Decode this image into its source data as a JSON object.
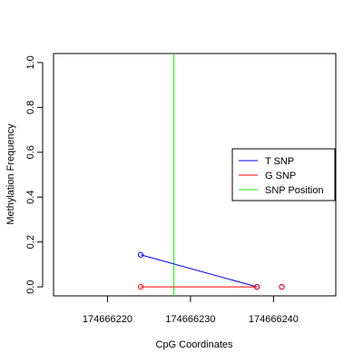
{
  "chart_data": {
    "type": "line",
    "xlabel": "CpG Coordinates",
    "ylabel": "Methylation Frequency",
    "xlim": [
      174666213.5,
      174666247.5
    ],
    "ylim": [
      -0.04,
      1.04
    ],
    "x_ticks": [
      174666220,
      174666230,
      174666240
    ],
    "x_tick_labels": [
      "174666220",
      "174666230",
      "174666240"
    ],
    "y_ticks": [
      0,
      0.2,
      0.4,
      0.6,
      0.8,
      1
    ],
    "y_tick_labels": [
      "0.0",
      "0.2",
      "0.4",
      "0.6",
      "0.8",
      "1.0"
    ],
    "grid": false,
    "legend_position": "right",
    "series": [
      {
        "name": "T SNP",
        "color": "#0000ff",
        "x": [
          174666224,
          174666238
        ],
        "y": [
          0.143,
          0.0
        ]
      },
      {
        "name": "G SNP",
        "color": "#ff0000",
        "x": [
          174666224,
          174666238
        ],
        "y": [
          0.0,
          0.0
        ]
      },
      {
        "name": "T SNP",
        "color": "#0000ff",
        "x": [
          174666241
        ],
        "y": [
          0.0
        ]
      },
      {
        "name": "G SNP",
        "color": "#ff0000",
        "x": [
          174666241
        ],
        "y": [
          0.0
        ]
      }
    ],
    "legend": [
      {
        "label": "T SNP",
        "color": "#0000ff"
      },
      {
        "label": "G SNP",
        "color": "#ff0000"
      },
      {
        "label": "SNP Position",
        "color": "#00ff00"
      }
    ],
    "snp_position": 174666228
  }
}
